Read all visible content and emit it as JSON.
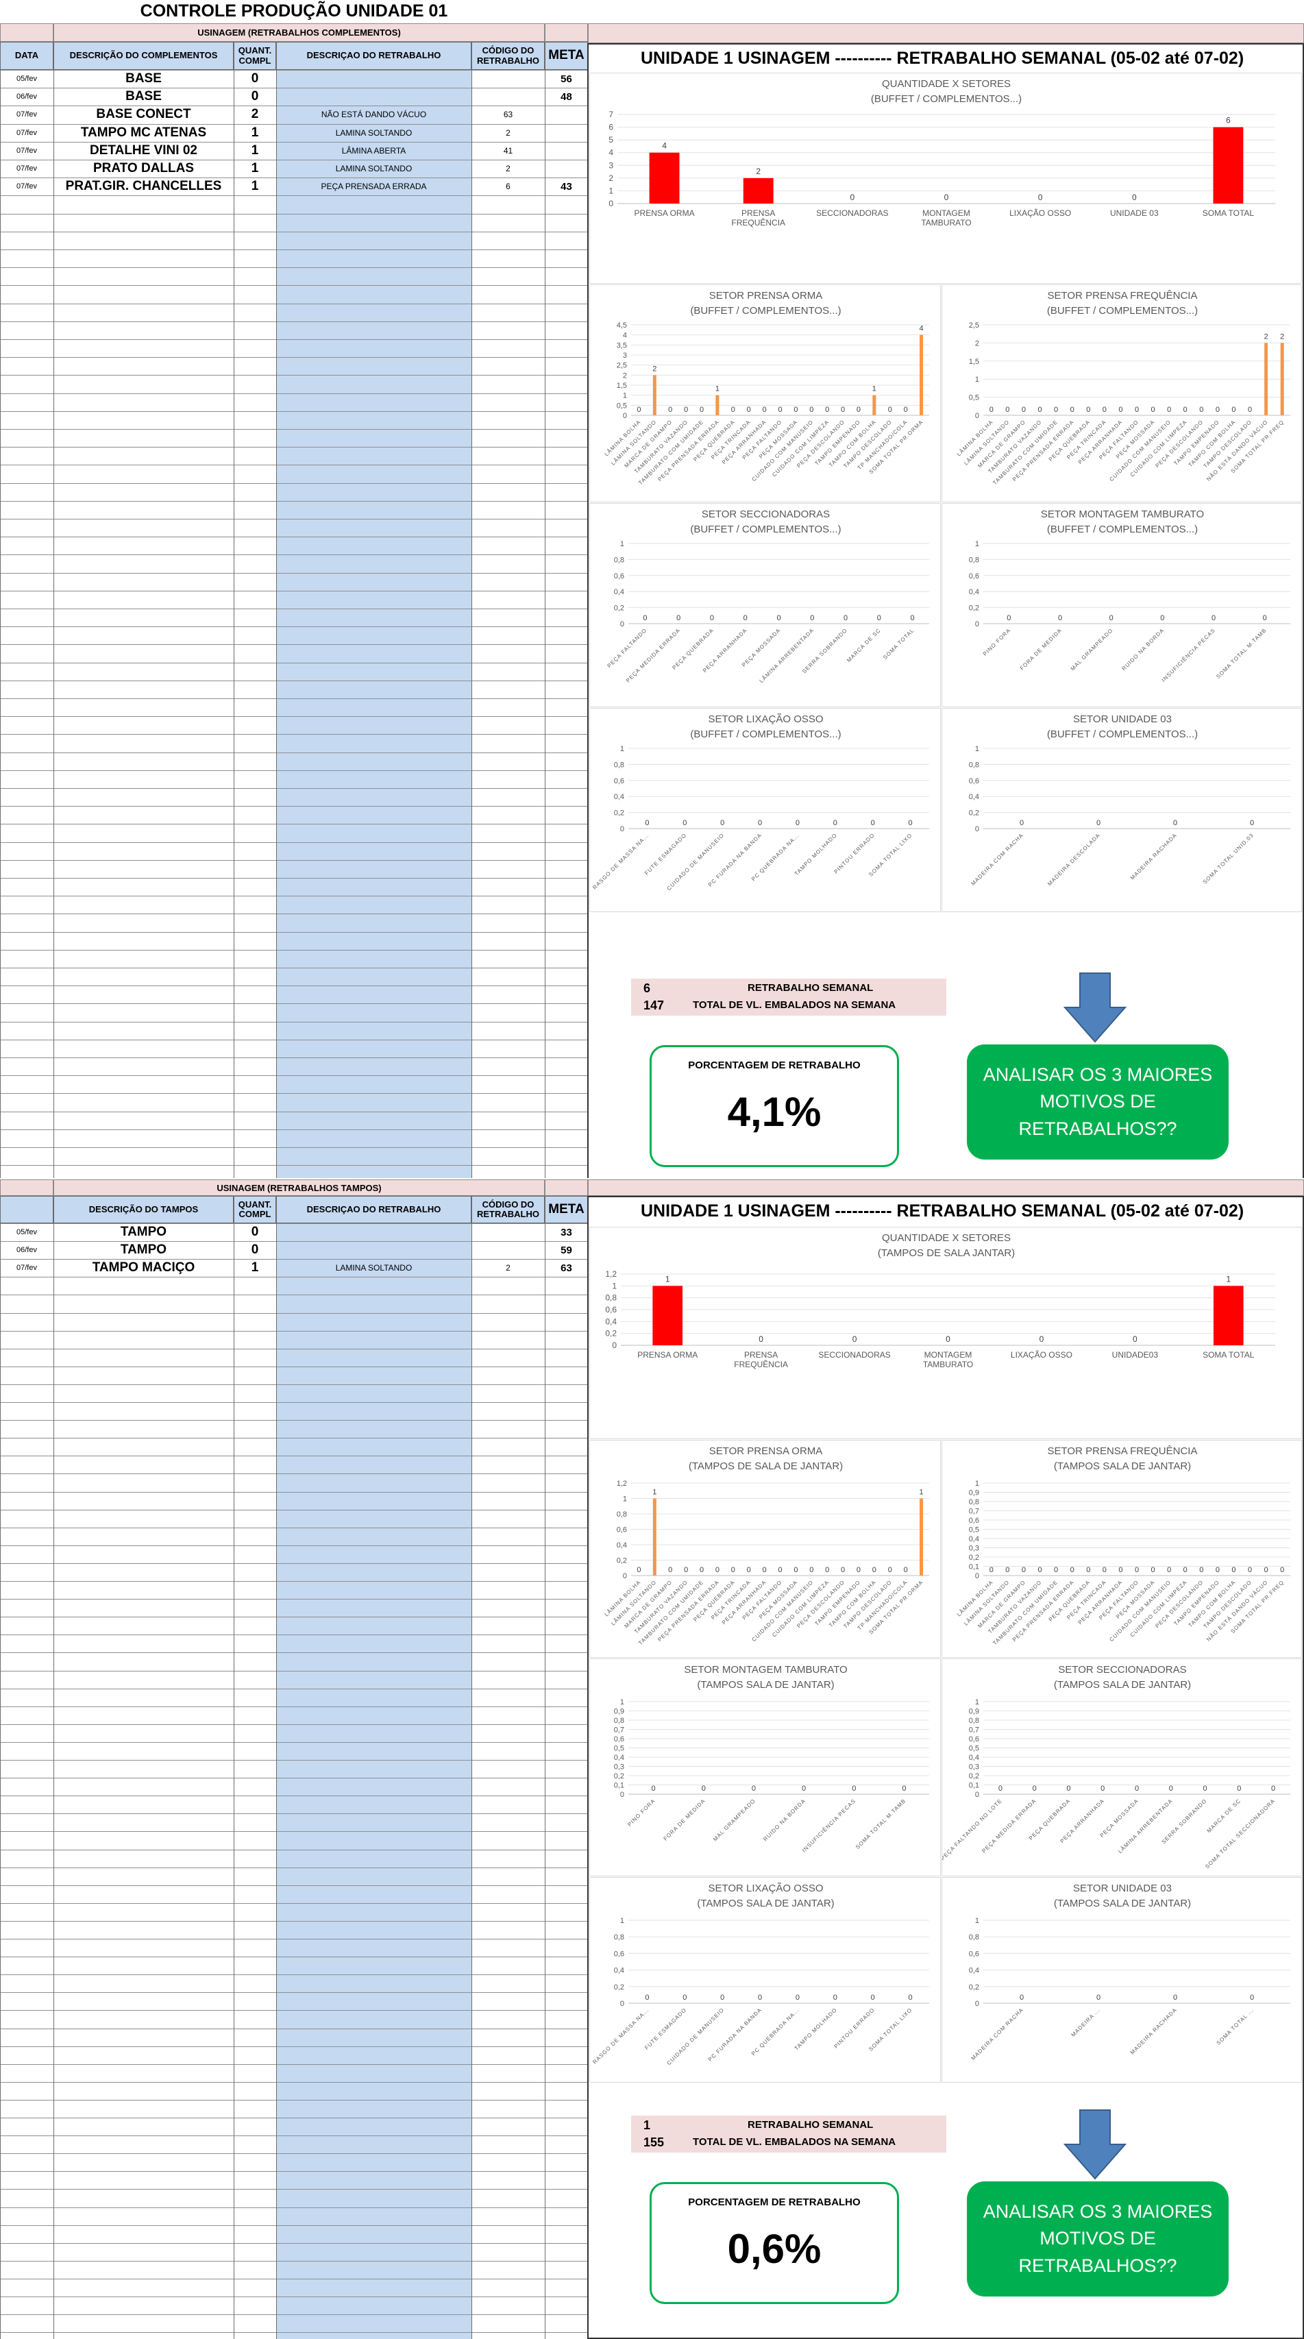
{
  "page_title": "CONTROLE PRODUÇÃO UNIDADE 01",
  "colors": {
    "accent_red": "#ff0000",
    "bar_orange": "#f79646",
    "header_blue": "#c5d9f1",
    "header_pink": "#f2dcdb",
    "green": "#00b050",
    "arrow_blue": "#4f81bd"
  },
  "sections": [
    {
      "id": "complementos",
      "table": {
        "title": "USINAGEM (RETRABALHOS COMPLEMENTOS)",
        "headers": {
          "data": "DATA",
          "descricao": "DESCRIÇÃO DO COMPLEMENTOS",
          "quant": "QUANT. COMPL",
          "retrabalho": "DESCRIÇAO DO RETRABALHO",
          "codigo": "CÓDIGO DO RETRABALHO",
          "meta": "META"
        },
        "rows": [
          {
            "data": "05/fev",
            "descricao": "BASE",
            "quant": "0",
            "retrabalho": "",
            "codigo": "",
            "meta": "56"
          },
          {
            "data": "06/fev",
            "descricao": "BASE",
            "quant": "0",
            "retrabalho": "",
            "codigo": "",
            "meta": "48"
          },
          {
            "data": "07/fev",
            "descricao": "BASE CONECT",
            "quant": "2",
            "retrabalho": "NÃO ESTÁ DANDO VÁCUO",
            "codigo": "63",
            "meta": ""
          },
          {
            "data": "07/fev",
            "descricao": "TAMPO MC ATENAS",
            "quant": "1",
            "retrabalho": "LAMINA SOLTANDO",
            "codigo": "2",
            "meta": ""
          },
          {
            "data": "07/fev",
            "descricao": "DETALHE VINI 02",
            "quant": "1",
            "retrabalho": "LÂMINA ABERTA",
            "codigo": "41",
            "meta": ""
          },
          {
            "data": "07/fev",
            "descricao": "PRATO DALLAS",
            "quant": "1",
            "retrabalho": "LAMINA SOLTANDO",
            "codigo": "2",
            "meta": ""
          },
          {
            "data": "07/fev",
            "descricao": "PRAT.GIR. CHANCELLES",
            "quant": "1",
            "retrabalho": "PEÇA PRENSADA ERRADA",
            "codigo": "6",
            "meta": "43"
          }
        ]
      },
      "report_title": "UNIDADE 1 USINAGEM ----------   RETRABALHO SEMANAL (05-02 até 07-02)",
      "summary": {
        "retrabalho_value": "6",
        "retrabalho_label": "RETRABALHO SEMANAL",
        "total_value": "147",
        "total_label": "TOTAL DE VL. EMBALADOS NA SEMANA"
      },
      "percent": {
        "label": "PORCENTAGEM DE RETRABALHO",
        "value": "4,1%"
      },
      "cta": "ANALISAR OS 3 MAIORES MOTIVOS DE RETRABALHOS??"
    },
    {
      "id": "tampos",
      "table": {
        "title": "USINAGEM (RETRABALHOS TAMPOS)",
        "headers": {
          "data": "",
          "descricao": "DESCRIÇÃO DO TAMPOS",
          "quant": "QUANT. COMPL",
          "retrabalho": "DESCRIÇAO DO RETRABALHO",
          "codigo": "CÓDIGO DO RETRABALHO",
          "meta": "META"
        },
        "rows": [
          {
            "data": "05/fev",
            "descricao": "TAMPO",
            "quant": "0",
            "retrabalho": "",
            "codigo": "",
            "meta": "33"
          },
          {
            "data": "06/fev",
            "descricao": "TAMPO",
            "quant": "0",
            "retrabalho": "",
            "codigo": "",
            "meta": "59"
          },
          {
            "data": "07/fev",
            "descricao": "TAMPO MACIÇO",
            "quant": "1",
            "retrabalho": "LAMINA SOLTANDO",
            "codigo": "2",
            "meta": "63"
          }
        ]
      },
      "report_title": "UNIDADE 1 USINAGEM ----------   RETRABALHO SEMANAL (05-02 até 07-02)",
      "summary": {
        "retrabalho_value": "1",
        "retrabalho_label": "RETRABALHO SEMANAL",
        "total_value": "155",
        "total_label": "TOTAL DE VL. EMBALADOS NA SEMANA"
      },
      "percent": {
        "label": "PORCENTAGEM DE RETRABALHO",
        "value": "0,6%"
      },
      "cta": "ANALISAR OS 3 MAIORES MOTIVOS DE RETRABALHOS??"
    }
  ],
  "chart_data": [
    {
      "type": "bar",
      "title": "QUANTIDADE X SETORES",
      "subtitle": "(BUFFET / COMPLEMENTOS...)",
      "categories": [
        "PRENSA ORMA",
        "PRENSA FREQUÊNCIA",
        "SECCIONADORAS",
        "MONTAGEM TAMBURATO",
        "LIXAÇÃO OSSO",
        "UNIDADE 03",
        "SOMA TOTAL"
      ],
      "values": [
        4,
        2,
        0,
        0,
        0,
        0,
        6
      ],
      "ylim": [
        0,
        7
      ],
      "yticks": [
        "0",
        "1",
        "2",
        "3",
        "4",
        "5",
        "6",
        "7"
      ],
      "color": "#ff0000"
    },
    {
      "type": "bar",
      "title": "SETOR PRENSA ORMA",
      "subtitle": "(BUFFET / COMPLEMENTOS...)",
      "categories": [
        "LÂMINA BOLHA",
        "LÂMINA SOLTANDO",
        "MARCA DE GRAMPO",
        "TAMBURATO VAZANDO",
        "TAMBURATO COM UMIDADE",
        "PEÇA PRENSADA ERRADA",
        "PEÇA QUEBRADA",
        "PEÇA TRINCADA",
        "PEÇA ARRANHADA",
        "PEÇA FALTANDO",
        "PEÇA MOSSADA",
        "CUIDADO COM MANUSEIO",
        "CUIDADO COM LIMPEZA",
        "PEÇA DESCOLANDO",
        "TAMPO EMPENADO",
        "TAMPO COM BOLHA",
        "TAMPO DESCOLADO",
        "TP MANCHADO/COLA",
        "SOMA TOTAL PR.ORMA"
      ],
      "values": [
        0,
        2,
        0,
        0,
        0,
        1,
        0,
        0,
        0,
        0,
        0,
        0,
        0,
        0,
        0,
        1,
        0,
        0,
        4
      ],
      "ylim": [
        0,
        4.5
      ],
      "yticks": [
        "0",
        "0,5",
        "1",
        "1,5",
        "2",
        "2,5",
        "3",
        "3,5",
        "4",
        "4,5"
      ],
      "color": "#f79646"
    },
    {
      "type": "bar",
      "title": "SETOR PRENSA FREQUÊNCIA",
      "subtitle": "(BUFFET / COMPLEMENTOS...)",
      "categories": [
        "LÂMINA BOLHA",
        "LÂMINA SOLTANDO",
        "MARCA DE GRAMPO",
        "TAMBURATO VAZANDO",
        "TAMBURATO COM UMIDADE",
        "PEÇA PRENSADA ERRADA",
        "PEÇA QUEBRADA",
        "PEÇA TRINCADA",
        "PEÇA ARRANHADA",
        "PEÇA FALTANDO",
        "PEÇA MOSSADA",
        "CUIDADO COM MANUSEIO",
        "CUIDADO COM LIMPEZA",
        "PEÇA DESCOLANDO",
        "TAMPO EMPENADO",
        "TAMPO COM BOLHA",
        "TAMPO DESCOLADO",
        "NÃO ESTÁ DANDO VÁCUO",
        "SOMA TOTAL PR.FREQ"
      ],
      "values": [
        0,
        0,
        0,
        0,
        0,
        0,
        0,
        0,
        0,
        0,
        0,
        0,
        0,
        0,
        0,
        0,
        0,
        2,
        2
      ],
      "ylim": [
        0,
        2.5
      ],
      "yticks": [
        "0",
        "0,5",
        "1",
        "1,5",
        "2",
        "2,5"
      ],
      "color": "#f79646"
    },
    {
      "type": "bar",
      "title": "SETOR SECCIONADORAS",
      "subtitle": "(BUFFET / COMPLEMENTOS...)",
      "categories": [
        "PEÇA FALTANDO",
        "PEÇA MEDIDA ERRADA",
        "PEÇA QUEBRADA",
        "PEÇA ARRANHADA",
        "PEÇA MOSSADA",
        "LÂMINA ARREBENTADA",
        "SERRA SOBRANDO",
        "MARCA DE SC",
        "SOMA TOTAL"
      ],
      "values": [
        0,
        0,
        0,
        0,
        0,
        0,
        0,
        0,
        0
      ],
      "ylim": [
        0,
        1
      ],
      "yticks": [
        "0",
        "0,2",
        "0,4",
        "0,6",
        "0,8",
        "1"
      ],
      "color": "#f79646"
    },
    {
      "type": "bar",
      "title": "SETOR MONTAGEM TAMBURATO",
      "subtitle": "(BUFFET / COMPLEMENTOS...)",
      "categories": [
        "PINO FORA",
        "FORA DE MEDIDA",
        "MAL GRAMPEADO",
        "RUIDO NA BORDA",
        "INSUFICIÊNCIA PECAS",
        "SOMA TOTAL M.TAMB"
      ],
      "values": [
        0,
        0,
        0,
        0,
        0,
        0
      ],
      "ylim": [
        0,
        1
      ],
      "yticks": [
        "0",
        "0,2",
        "0,4",
        "0,6",
        "0,8",
        "1"
      ],
      "color": "#f79646"
    },
    {
      "type": "bar",
      "title": "SETOR LIXAÇÃO OSSO",
      "subtitle": "(BUFFET / COMPLEMENTOS...)",
      "categories": [
        "RASGO DE MASSA NA...",
        "FUTE ESMAGADO",
        "CUIDADO DE MANUSEIO",
        "PC FURADA NA BANDA",
        "PC QUEBRADA NA...",
        "TAMPO MOLHADO",
        "PINTOU ERRADO",
        "SOMA TOTAL LIXO"
      ],
      "values": [
        0,
        0,
        0,
        0,
        0,
        0,
        0,
        0
      ],
      "ylim": [
        0,
        1
      ],
      "yticks": [
        "0",
        "0,2",
        "0,4",
        "0,6",
        "0,8",
        "1"
      ],
      "color": "#f79646"
    },
    {
      "type": "bar",
      "title": "SETOR UNIDADE 03",
      "subtitle": "(BUFFET / COMPLEMENTOS...)",
      "categories": [
        "MADEIRA COM RACHA",
        "MADEIRA DESCOLADA",
        "MADEIRA RACHADA",
        "SOMA TOTAL UNID.03"
      ],
      "values": [
        0,
        0,
        0,
        0
      ],
      "ylim": [
        0,
        1
      ],
      "yticks": [
        "0",
        "0,2",
        "0,4",
        "0,6",
        "0,8",
        "1"
      ],
      "color": "#f79646"
    },
    {
      "type": "bar",
      "title": "QUANTIDADE X SETORES",
      "subtitle": "(TAMPOS DE SALA JANTAR)",
      "categories": [
        "PRENSA ORMA",
        "PRENSA FREQUÊNCIA",
        "SECCIONADORAS",
        "MONTAGEM TAMBURATO",
        "LIXAÇÃO OSSO",
        "UNIDADE03",
        "SOMA TOTAL"
      ],
      "values": [
        1,
        0,
        0,
        0,
        0,
        0,
        1
      ],
      "ylim": [
        0,
        1.2
      ],
      "yticks": [
        "0",
        "0,2",
        "0,4",
        "0,6",
        "0,8",
        "1",
        "1,2"
      ],
      "color": "#ff0000"
    },
    {
      "type": "bar",
      "title": "SETOR PRENSA ORMA",
      "subtitle": "(TAMPOS DE SALA DE JANTAR)",
      "categories": [
        "LÂMINA BOLHA",
        "LÂMINA SOLTANDO",
        "MARCA DE GRAMPO",
        "TAMBURATO VAZANDO",
        "TAMBURATO COM UMIDADE",
        "PEÇA PRENSADA ERRADA",
        "PEÇA QUEBRADA",
        "PEÇA TRINCADA",
        "PEÇA ARRANHADA",
        "PEÇA FALTANDO",
        "PEÇA MOSSADA",
        "CUIDADO COM MANUSEIO",
        "CUIDADO COM LIMPEZA",
        "PEÇA DESCOLANDO",
        "TAMPO EMPENADO",
        "TAMPO COM BOLHA",
        "TAMPO DESCOLADO",
        "TP MANCHADO/COLA",
        "SOMA TOTAL PR.ORMA"
      ],
      "values": [
        0,
        1,
        0,
        0,
        0,
        0,
        0,
        0,
        0,
        0,
        0,
        0,
        0,
        0,
        0,
        0,
        0,
        0,
        1
      ],
      "ylim": [
        0,
        1.2
      ],
      "yticks": [
        "0",
        "0,2",
        "0,4",
        "0,6",
        "0,8",
        "1",
        "1,2"
      ],
      "color": "#f79646"
    },
    {
      "type": "bar",
      "title": "SETOR PRENSA FREQUÊNCIA",
      "subtitle": "(TAMPOS SALA DE JANTAR)",
      "categories": [
        "LÂMINA BOLHA",
        "LÂMINA SOLTANDO",
        "MARCA DE GRAMPO",
        "TAMBURATO VAZANDO",
        "TAMBURATO COM UMIDADE",
        "PEÇA PRENSADA ERRADA",
        "PEÇA QUEBRADA",
        "PEÇA TRINCADA",
        "PEÇA ARRANHADA",
        "PEÇA FALTANDO",
        "PEÇA MOSSADA",
        "CUIDADO COM MANUSEIO",
        "CUIDADO COM LIMPEZA",
        "PEÇA DESCOLANDO",
        "TAMPO EMPENADO",
        "TAMPO COM BOLHA",
        "TAMPO DESCOLADO",
        "NÃO ESTÁ DANDO VÁCUO",
        "SOMA TOTAL PR.FREQ"
      ],
      "values": [
        0,
        0,
        0,
        0,
        0,
        0,
        0,
        0,
        0,
        0,
        0,
        0,
        0,
        0,
        0,
        0,
        0,
        0,
        0
      ],
      "ylim": [
        0,
        1
      ],
      "yticks": [
        "0",
        "0,1",
        "0,2",
        "0,3",
        "0,4",
        "0,5",
        "0,6",
        "0,7",
        "0,8",
        "0,9",
        "1"
      ],
      "color": "#f79646"
    },
    {
      "type": "bar",
      "title": "SETOR  MONTAGEM TAMBURATO",
      "subtitle": "(TAMPOS SALA DE JANTAR)",
      "categories": [
        "PINO FORA",
        "FORA DE MEDIDA",
        "MAL GRAMPEADO",
        "RUIDO NA BORDA",
        "INSUFICIÊNCIA PECAS",
        "SOMA TOTAL M.TAMB"
      ],
      "values": [
        0,
        0,
        0,
        0,
        0,
        0
      ],
      "ylim": [
        0,
        1
      ],
      "yticks": [
        "0",
        "0,1",
        "0,2",
        "0,3",
        "0,4",
        "0,5",
        "0,6",
        "0,7",
        "0,8",
        "0,9",
        "1"
      ],
      "color": "#f79646"
    },
    {
      "type": "bar",
      "title": "SETOR SECCIONADORAS",
      "subtitle": "(TAMPOS SALA DE JANTAR)",
      "categories": [
        "PEÇA FALTANDO NO LOTE",
        "PEÇA MEDIDA ERRADA",
        "PEÇA QUEBRADA",
        "PEÇA ARRANHADA",
        "PEÇA MOSSADA",
        "LÂMINA ARREBENTADA",
        "SERRA SOBRANDO",
        "MARCA DE SC",
        "SOMA TOTAL SECCIONADORA"
      ],
      "values": [
        0,
        0,
        0,
        0,
        0,
        0,
        0,
        0,
        0
      ],
      "ylim": [
        0,
        1
      ],
      "yticks": [
        "0",
        "0,1",
        "0,2",
        "0,3",
        "0,4",
        "0,5",
        "0,6",
        "0,7",
        "0,8",
        "0,9",
        "1"
      ],
      "color": "#f79646"
    },
    {
      "type": "bar",
      "title": "SETOR LIXAÇÃO OSSO",
      "subtitle": "(TAMPOS SALA DE JANTAR)",
      "categories": [
        "RASGO DE MASSA NA...",
        "FUTE ESMAGADO",
        "CUIDADO DE MANUSEIO",
        "PC FURADA NA BANDA",
        "PC QUEBRADA NA...",
        "TAMPO MOLHADO",
        "PINTOU ERRADO",
        "SOMA TOTAL LIXO"
      ],
      "values": [
        0,
        0,
        0,
        0,
        0,
        0,
        0,
        0
      ],
      "ylim": [
        0,
        1
      ],
      "yticks": [
        "0",
        "0,2",
        "0,4",
        "0,6",
        "0,8",
        "1"
      ],
      "color": "#f79646"
    },
    {
      "type": "bar",
      "title": "SETOR UNIDADE 03",
      "subtitle": "(TAMPOS SALA DE JANTAR)",
      "categories": [
        "MADEIRA COM RACHA",
        "MADEIRA ...",
        "MADEIRA RACHADA",
        "SOMA TOTAL ..."
      ],
      "values": [
        0,
        0,
        0,
        0
      ],
      "ylim": [
        0,
        1
      ],
      "yticks": [
        "0",
        "0,2",
        "0,4",
        "0,6",
        "0,8",
        "1"
      ],
      "color": "#f79646"
    }
  ]
}
